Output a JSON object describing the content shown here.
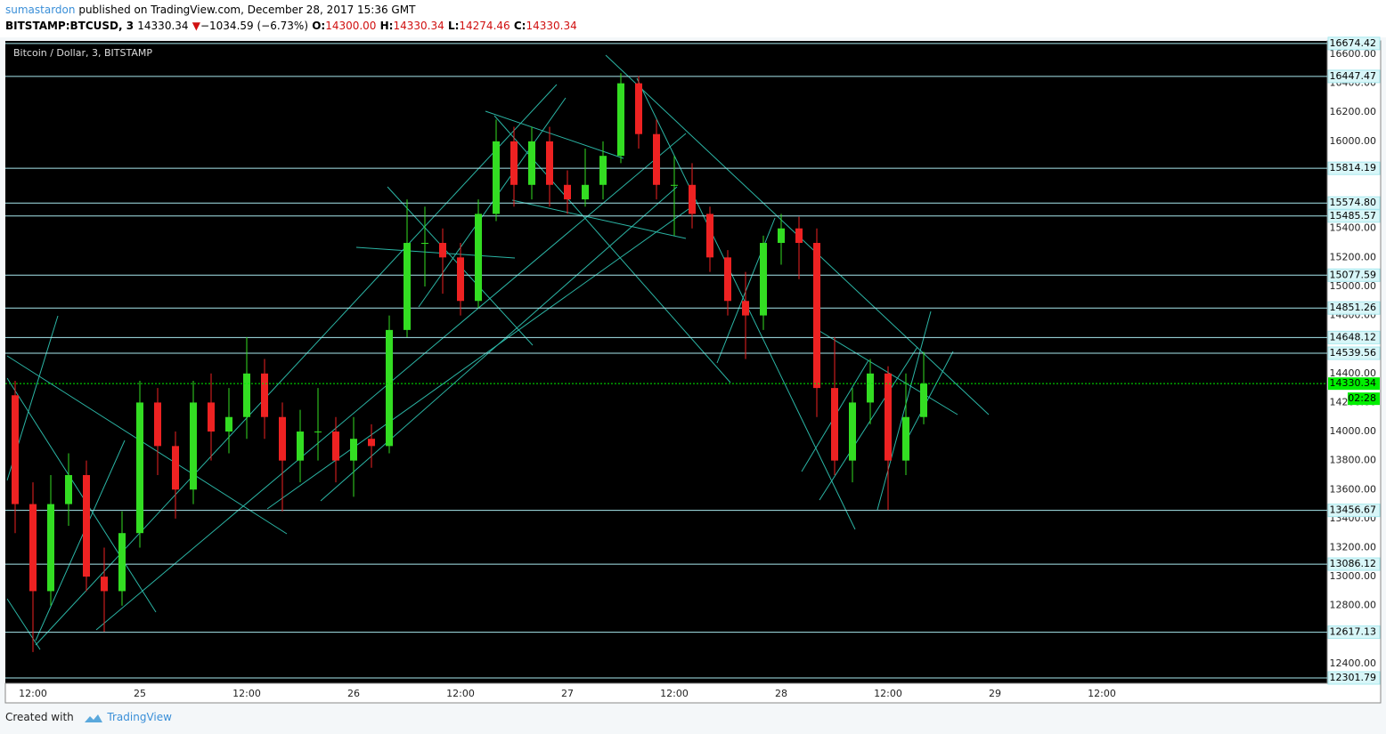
{
  "header": {
    "author": "sumastardon",
    "published": "published on TradingView.com, December 28, 2017 15:36 GMT",
    "symbol": "BITSTAMP:BTCUSD, 3",
    "last": "14330.34",
    "arrow": "▼",
    "change": "−1034.59 (−6.73%)",
    "o_label": "O:",
    "o": "14300.00",
    "h_label": "H:",
    "h": "14330.34",
    "l_label": "L:",
    "l": "14274.46",
    "c_label": "C:",
    "c": "14330.34"
  },
  "chart_data": {
    "type": "candlestick",
    "title": "Bitcoin / Dollar, 3, BITSTAMP",
    "up_color": "#33dd22",
    "down_color": "#ee2222",
    "level_color": "#a8e8ee",
    "last_color": "#00ee00",
    "x": [
      -14,
      -12,
      -10,
      -8,
      -6,
      -4,
      -2,
      0,
      2,
      4,
      6,
      8,
      10,
      12,
      14,
      16,
      18,
      20,
      22,
      24,
      26,
      28,
      30,
      32,
      34,
      36,
      38,
      40,
      42,
      44,
      46,
      48,
      50,
      52,
      54,
      56,
      58,
      60,
      62,
      64,
      66,
      68,
      70,
      72,
      74,
      76,
      78,
      80,
      82,
      84,
      86,
      88
    ],
    "open": [
      14250,
      13500,
      12900,
      13500,
      13700,
      13000,
      12900,
      13300,
      14200,
      13900,
      13600,
      14200,
      14000,
      14100,
      14400,
      14100,
      13800,
      14000,
      14000,
      13800,
      13950,
      13900,
      14700,
      15300,
      15300,
      15200,
      14900,
      15500,
      16000,
      15700,
      16000,
      15700,
      15600,
      15700,
      15900,
      16400,
      16050,
      15700,
      15700,
      15500,
      15200,
      14900,
      14800,
      15300,
      15400,
      15300,
      14300,
      13800,
      14200,
      14400,
      13800,
      14100
    ],
    "high": [
      14350,
      13650,
      13700,
      13850,
      13800,
      13200,
      13450,
      14350,
      14300,
      14000,
      14350,
      14400,
      14300,
      14650,
      14500,
      14200,
      14150,
      14300,
      14100,
      14100,
      14050,
      14800,
      15600,
      15550,
      15400,
      15300,
      15600,
      16150,
      16100,
      16100,
      16100,
      15800,
      15950,
      16000,
      16470,
      16450,
      16150,
      15900,
      15850,
      15550,
      15250,
      15100,
      15350,
      15500,
      15480,
      15400,
      14650,
      14300,
      14500,
      14450,
      14400,
      14550
    ],
    "low": [
      13300,
      12480,
      12800,
      13350,
      12900,
      12620,
      12800,
      13200,
      13700,
      13400,
      13500,
      13800,
      13850,
      13950,
      13950,
      13450,
      13650,
      13800,
      13650,
      13550,
      13750,
      13850,
      14650,
      15000,
      14950,
      14800,
      14850,
      15450,
      15550,
      15600,
      15550,
      15500,
      15550,
      15600,
      15850,
      15950,
      15600,
      15350,
      15400,
      15100,
      14800,
      14500,
      14700,
      15150,
      15050,
      14100,
      13700,
      13650,
      14050,
      13460,
      13700,
      14050
    ],
    "close": [
      13500,
      12900,
      13500,
      13700,
      13000,
      12900,
      13300,
      14200,
      13900,
      13600,
      14200,
      14000,
      14100,
      14400,
      14100,
      13800,
      14000,
      14000,
      13800,
      13950,
      13900,
      14700,
      15300,
      15300,
      15200,
      14900,
      15500,
      16000,
      15700,
      16000,
      15700,
      15600,
      15700,
      15900,
      16400,
      16050,
      15700,
      15700,
      15500,
      15200,
      14900,
      14800,
      15300,
      15400,
      15300,
      14300,
      13800,
      14200,
      14400,
      13800,
      14100,
      14330.34
    ],
    "xlim": [
      -15.1,
      133.3
    ],
    "xticks": [
      {
        "value": -12,
        "label": "12:00"
      },
      {
        "value": 0,
        "label": "25"
      },
      {
        "value": 12,
        "label": "12:00"
      },
      {
        "value": 24,
        "label": "26"
      },
      {
        "value": 36,
        "label": "12:00"
      },
      {
        "value": 48,
        "label": "27"
      },
      {
        "value": 60,
        "label": "12:00"
      },
      {
        "value": 72,
        "label": "28"
      },
      {
        "value": 84,
        "label": "12:00"
      },
      {
        "value": 96,
        "label": "29"
      },
      {
        "value": 108,
        "label": "12:00"
      }
    ],
    "ylim": [
      12265,
      16692
    ],
    "yticks": [
      {
        "value": 16600,
        "label": "16600.00"
      },
      {
        "value": 16400,
        "label": "16400.00"
      },
      {
        "value": 16200,
        "label": "16200.00"
      },
      {
        "value": 16000,
        "label": "16000.00"
      },
      {
        "value": 15400,
        "label": "15400.00"
      },
      {
        "value": 15200,
        "label": "15200.00"
      },
      {
        "value": 15000,
        "label": "15000.00"
      },
      {
        "value": 14800,
        "label": "14800.00"
      },
      {
        "value": 14400,
        "label": "14400.00"
      },
      {
        "value": 14200,
        "label": "14200.00"
      },
      {
        "value": 14000,
        "label": "14000.00"
      },
      {
        "value": 13800,
        "label": "13800.00"
      },
      {
        "value": 13600,
        "label": "13600.00"
      },
      {
        "value": 13400,
        "label": "13400.00"
      },
      {
        "value": 13200,
        "label": "13200.00"
      },
      {
        "value": 13000,
        "label": "13000.00"
      },
      {
        "value": 12800,
        "label": "12800.00"
      },
      {
        "value": 12400,
        "label": "12400.00"
      }
    ],
    "levels": [
      16674.42,
      16447.47,
      15814.19,
      {
        "value": 15574.8,
        "label": "15574.80"
      },
      15485.57,
      15077.59,
      14851.26,
      14648.12,
      14539.56,
      13456.67,
      13086.12,
      12617.13,
      12301.79
    ],
    "last_price": 14330.34,
    "countdown": "02:28"
  },
  "footer": {
    "created": "Created with",
    "brand": "TradingView"
  }
}
